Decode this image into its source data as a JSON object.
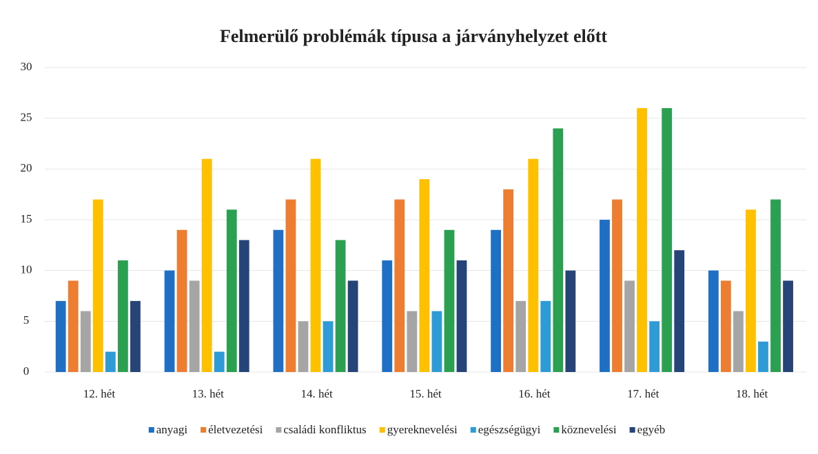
{
  "chart_data": {
    "type": "bar",
    "title": "Felmerülő problémák típusa a járványhelyzet előtt",
    "categories": [
      "12. hét",
      "13. hét",
      "14. hét",
      "15. hét",
      "16. hét",
      "17. hét",
      "18. hét"
    ],
    "series": [
      {
        "name": "anyagi",
        "color": "#1f6fc5",
        "values": [
          7,
          10,
          14,
          11,
          14,
          15,
          10
        ]
      },
      {
        "name": "életvezetési",
        "color": "#ed7d31",
        "values": [
          9,
          14,
          17,
          17,
          18,
          17,
          9
        ]
      },
      {
        "name": "családi konfliktus",
        "color": "#a5a5a5",
        "values": [
          6,
          9,
          5,
          6,
          7,
          9,
          6
        ]
      },
      {
        "name": "gyereknevelési",
        "color": "#ffc000",
        "values": [
          17,
          21,
          21,
          19,
          21,
          26,
          16
        ]
      },
      {
        "name": "egészségügyi",
        "color": "#2e9bd6",
        "values": [
          2,
          2,
          5,
          6,
          7,
          5,
          3
        ]
      },
      {
        "name": "köznevelési",
        "color": "#2aa050",
        "values": [
          11,
          16,
          13,
          14,
          24,
          26,
          17
        ]
      },
      {
        "name": "egyéb",
        "color": "#264478",
        "values": [
          7,
          13,
          9,
          11,
          10,
          12,
          9
        ]
      }
    ],
    "ylim": [
      0,
      30
    ],
    "yticks": [
      0,
      5,
      10,
      15,
      20,
      25,
      30
    ],
    "grid": true,
    "legend": "bottom"
  }
}
